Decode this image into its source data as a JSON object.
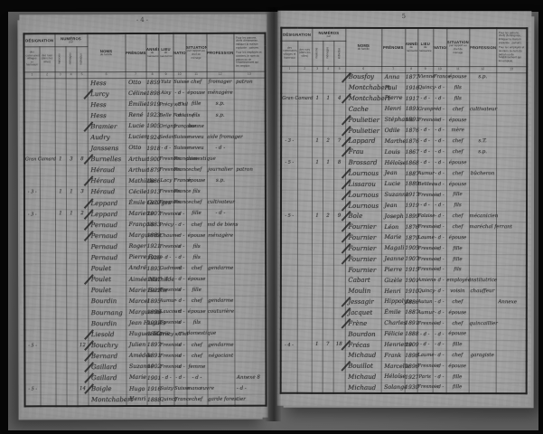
{
  "columns": {
    "designation": {
      "title": "DÉSIGNATION",
      "subs": [
        "des communes, villages et hameaux",
        "des rues (dans les villes)"
      ]
    },
    "numeros": {
      "title": "NUMÉROS",
      "note": "par",
      "subs": [
        "maisons",
        "ménages",
        "individus"
      ]
    },
    "noms": {
      "title": "NOMS",
      "sub": "de famille"
    },
    "prenoms": {
      "title": "PRÉNOMS",
      "sub": ""
    },
    "annee": {
      "title": "ANNÉE",
      "sub": "de naissance"
    },
    "lieu": {
      "title": "LIEU",
      "sub": "de naissance"
    },
    "nationalite": {
      "title": "NATIONALITÉ",
      "sub": ""
    },
    "situation": {
      "title": "SITUATION",
      "sub": "par rapport au chef de ménage"
    },
    "profession": {
      "title": "PROFESSION",
      "sub": ""
    },
    "observations": {
      "note1": "Pour les patrons, chefs d'entreprise, indiquer la maison exploitée ; patrons.",
      "note2": "Pour les employés et ouvriers, le nom du patron ou de l'établissement qui les emploie."
    },
    "col_digits": [
      "1",
      "2",
      "3",
      "4",
      "5",
      "6",
      "7",
      "8",
      "9",
      "10",
      "11",
      "12",
      "13"
    ]
  },
  "pages": [
    {
      "no": "-4-",
      "rows": [
        [
          "",
          "",
          "",
          "",
          "",
          "Hess",
          "Otto",
          "1859",
          "Yutz",
          "Suisse",
          "chef",
          "fromager",
          "patron",
          0
        ],
        [
          "",
          "",
          "",
          "",
          "",
          "Lurcy",
          "Céline",
          "1898",
          "Aisy",
          "- d -",
          "épouse",
          "ménagère",
          "",
          1
        ],
        [
          "",
          "",
          "",
          "",
          "",
          "Hess",
          "Émilie",
          "1919",
          "Précy s/Thil",
          "- d -",
          "fille",
          "s.p.",
          "",
          0
        ],
        [
          "",
          "",
          "",
          "",
          "",
          "Hess",
          "René",
          "1923",
          "Belle Fontaine",
          "- d -",
          "fils",
          "s.p.",
          "",
          0
        ],
        [
          "",
          "",
          "",
          "",
          "",
          "Bramier",
          "Lucie",
          "1905",
          "Origny",
          "française",
          "bonne",
          "",
          "",
          1
        ],
        [
          "",
          "",
          "",
          "",
          "",
          "Audry",
          "Lucien",
          "1924",
          "Sedan",
          "Suisse",
          "neveu",
          "aide fromager",
          "",
          0
        ],
        [
          "",
          "",
          "",
          "",
          "",
          "Janssens",
          "Otto",
          "1918",
          "- d -",
          "Suisse",
          "neveu",
          "- d -",
          "",
          0
        ],
        [
          "Gran Camard",
          "",
          "1",
          "3",
          "8",
          "Burnelles",
          "Arthur",
          "1900",
          "Fresnois",
          "Française",
          "domestique",
          "",
          "",
          1
        ],
        [
          "",
          "",
          "",
          "",
          "",
          "Héraud",
          "Arthur",
          "1879",
          "Fresnois",
          "France",
          "chef",
          "journalier",
          "patron",
          0
        ],
        [
          "",
          "",
          "",
          "",
          "",
          "Héraud",
          "Mathilde",
          "1886",
          "Lacy",
          "France",
          "épouse",
          "s.p.",
          "",
          1
        ],
        [
          "- 3 -",
          "",
          "1",
          "1",
          "3",
          "Héraud",
          "Cécile",
          "1913",
          "Fresnois",
          "France",
          "fils",
          "",
          "",
          0
        ],
        [
          "",
          "",
          "",
          "",
          "",
          "Leppard",
          "Émile Georges",
          "1877",
          "Fresnois",
          "France",
          "chef",
          "cultivateur",
          "",
          1
        ],
        [
          "- 3 -",
          "",
          "1",
          "1",
          "2",
          "Leppard",
          "Mariette",
          "1907",
          "Fresnois",
          "- d -",
          "fille",
          "- d -",
          "",
          1
        ],
        [
          "",
          "",
          "",
          "",
          "",
          "Pernaud",
          "François",
          "1883",
          "Précy",
          "- d -",
          "chef",
          "md de biens",
          "",
          1
        ],
        [
          "",
          "",
          "",
          "",
          "",
          "Pernaud",
          "Marguerite",
          "1889",
          "Chaume",
          "- d -",
          "épouse",
          "ménagère",
          "",
          1
        ],
        [
          "",
          "",
          "",
          "",
          "",
          "Pernaud",
          "Roger",
          "1921",
          "Fresnois",
          "- d -",
          "fils",
          "",
          "",
          0
        ],
        [
          "",
          "",
          "",
          "",
          "",
          "Pernaud",
          "Pierre Rose",
          "1919",
          "- d -",
          "- d -",
          "fils",
          "",
          "",
          0
        ],
        [
          "",
          "",
          "",
          "",
          "",
          "Poulet",
          "André",
          "1893",
          "Gudmont",
          "- d -",
          "chef",
          "gendarme",
          "",
          0
        ],
        [
          "",
          "",
          "",
          "",
          "",
          "Poulet",
          "Aimée Mathilde",
          "1897",
          "- d -",
          "- d -",
          "épouse",
          "",
          "",
          1
        ],
        [
          "",
          "",
          "",
          "",
          "",
          "Poulet",
          "Marie Berthe",
          "1922",
          "Fresnois",
          "- d -",
          "fille",
          "",
          "",
          0
        ],
        [
          "",
          "",
          "",
          "",
          "",
          "Bourdin",
          "Marcel",
          "1895",
          "Aumur",
          "- d -",
          "chef",
          "gendarme",
          "",
          0
        ],
        [
          "",
          "",
          "",
          "",
          "",
          "Bournang",
          "Marguerite",
          "1896",
          "Laucourt",
          "- d -",
          "épouse",
          "couturière",
          "",
          0
        ],
        [
          "",
          "",
          "",
          "",
          "",
          "Bourdin",
          "Jean Hugues",
          "1927",
          "Fresnois",
          "- d -",
          "fils",
          "",
          "",
          0
        ],
        [
          "",
          "",
          "",
          "",
          "",
          "Liesold",
          "Hugues Marie",
          "1882",
          "Précy s/Thil",
          "- d -",
          "domestique",
          "",
          "",
          1
        ],
        [
          "- 5 -",
          "",
          "",
          "",
          "12",
          "Bouchry",
          "Julien",
          "1897",
          "Fresnois",
          "- d -",
          "chef",
          "gendarme",
          "",
          1
        ],
        [
          "",
          "",
          "",
          "",
          "",
          "Bernard",
          "Amédée",
          "1891",
          "Fresnois",
          "- d -",
          "chef",
          "négociant",
          "",
          1
        ],
        [
          "",
          "",
          "",
          "",
          "",
          "Gaillard",
          "Suzanne",
          "1902",
          "Fresnois",
          "- d -",
          "femme",
          "",
          "",
          1
        ],
        [
          "",
          "",
          "",
          "",
          "",
          "Gaillard",
          "Marie",
          "1901",
          "- d -",
          "- d -",
          "- d -",
          "",
          "Annexe 8",
          1
        ],
        [
          "- 5 -",
          "",
          "",
          "",
          "14",
          "Boigle",
          "Hugo",
          "1916",
          "Suizy",
          "Suisse",
          "manœuvre",
          "",
          "- d -",
          1
        ],
        [
          "",
          "",
          "",
          "",
          "",
          "Montchabert",
          "Henri",
          "1888",
          "Quincy",
          "France",
          "chef",
          "garde forestier",
          "",
          0
        ]
      ]
    },
    {
      "no": "5",
      "rows": [
        [
          "",
          "",
          "",
          "",
          "",
          "Bousfoy",
          "Anna",
          "1877",
          "Vienne",
          "France",
          "épouse",
          "s.p.",
          "",
          1
        ],
        [
          "",
          "",
          "",
          "",
          "",
          "Montchabert",
          "Paul",
          "1916",
          "Quincy",
          "- d -",
          "fils",
          "",
          "",
          0
        ],
        [
          "Gran Camard",
          "",
          "1",
          "1",
          "4",
          "Montchabert",
          "Pierre",
          "1917",
          "- d -",
          "- d -",
          "fils",
          "",
          "",
          1
        ],
        [
          "",
          "",
          "",
          "",
          "",
          "Cache",
          "Henri",
          "1891",
          "Granpré",
          "- d -",
          "chef",
          "cultivateur",
          "",
          0
        ],
        [
          "",
          "",
          "",
          "",
          "",
          "Poulietier",
          "Stéphanie",
          "1891",
          "Fresnois",
          "- d -",
          "épouse",
          "",
          "",
          1
        ],
        [
          "",
          "",
          "",
          "",
          "",
          "Poulietier",
          "Odile",
          "1876",
          "- d -",
          "- d -",
          "mère",
          "",
          "",
          1
        ],
        [
          "- 3 -",
          "",
          "1",
          "2",
          "7",
          "Lappard",
          "Marthe",
          "1876",
          "- d -",
          "- d -",
          "chef",
          "s.T.",
          "",
          1
        ],
        [
          "",
          "",
          "",
          "",
          "",
          "Frau",
          "Louis",
          "1867",
          "- d -",
          "- d -",
          "chef",
          "s.p.",
          "",
          1
        ],
        [
          "- 5 -",
          "",
          "1",
          "1",
          "8",
          "Brossard",
          "Héloïse",
          "1868",
          "- d -",
          "- d -",
          "épouse",
          "",
          "",
          0
        ],
        [
          "",
          "",
          "",
          "",
          "",
          "Lournous",
          "Jean",
          "1887",
          "Aumur",
          "- d -",
          "chef",
          "bûcheron",
          "",
          1
        ],
        [
          "",
          "",
          "",
          "",
          "",
          "Lissarou",
          "Lucie",
          "1889",
          "Belileau",
          "- d -",
          "épouse",
          "",
          "",
          1
        ],
        [
          "",
          "",
          "",
          "",
          "",
          "Lournous",
          "Suzanne",
          "1917",
          "Fresnois",
          "- d -",
          "fille",
          "",
          "",
          1
        ],
        [
          "",
          "",
          "",
          "",
          "",
          "Lournous",
          "Jean",
          "1919",
          "- d -",
          "- d -",
          "fils",
          "",
          "",
          1
        ],
        [
          "- 5 -",
          "",
          "1",
          "2",
          "9",
          "Bole",
          "Joseph",
          "1899",
          "Falaise",
          "- d -",
          "chef",
          "mécanicien",
          "",
          1
        ],
        [
          "",
          "",
          "",
          "",
          "",
          "Fournier",
          "Léon",
          "1876",
          "Fresnois",
          "- d -",
          "chef",
          "maréchal ferrant",
          "",
          1
        ],
        [
          "",
          "",
          "",
          "",
          "",
          "Fournier",
          "Marie",
          "1879",
          "Laume",
          "- d -",
          "épouse",
          "",
          "",
          1
        ],
        [
          "",
          "",
          "",
          "",
          "",
          "Fournier",
          "Magali",
          "1905",
          "Fresnois",
          "- d -",
          "fille",
          "",
          "",
          1
        ],
        [
          "",
          "",
          "",
          "",
          "",
          "Fournier",
          "Jeanne",
          "1907",
          "Fresnois",
          "- d -",
          "fille",
          "",
          "",
          1
        ],
        [
          "",
          "",
          "",
          "",
          "",
          "Fournier",
          "Pierre",
          "1915",
          "Fresnois",
          "- d -",
          "fils",
          "",
          "",
          0
        ],
        [
          "",
          "",
          "",
          "",
          "",
          "Cabart",
          "Gizèle",
          "1901",
          "Amiens",
          "- d -",
          "employée",
          "institutrice",
          "",
          0
        ],
        [
          "",
          "",
          "",
          "",
          "",
          "Moulin",
          "Henri",
          "1910",
          "Quincy",
          "- d -",
          "voisin",
          "chauffeur",
          "",
          0
        ],
        [
          "",
          "",
          "",
          "",
          "",
          "Jessagir",
          "Hippolyte",
          "1886",
          "Autun",
          "- d -",
          "chef",
          "",
          "Annexe",
          1
        ],
        [
          "",
          "",
          "",
          "",
          "",
          "Jacquet",
          "Émile",
          "1887",
          "Aumur",
          "- d -",
          "épouse",
          "",
          "",
          1
        ],
        [
          "",
          "",
          "",
          "",
          "",
          "Frène",
          "Charles",
          "1891",
          "Fresnois",
          "- d -",
          "chef",
          "quincaillier",
          "",
          1
        ],
        [
          "",
          "",
          "",
          "",
          "",
          "Bourdon",
          "Félicie",
          "1888",
          "- d -",
          "- d -",
          "épouse",
          "",
          "",
          0
        ],
        [
          "- 4 -",
          "",
          "1",
          "7",
          "18",
          "Frécas",
          "Henriette",
          "1909",
          "- d -",
          "- d -",
          "fille",
          "",
          "",
          1
        ],
        [
          "",
          "",
          "",
          "",
          "",
          "Michaud",
          "Frank",
          "1898",
          "Laume",
          "- d -",
          "chef",
          "garagiste",
          "",
          0
        ],
        [
          "",
          "",
          "",
          "",
          "",
          "Bouillot",
          "Marcelle",
          "1896",
          "Fresnois",
          "- d -",
          "épouse",
          "",
          "",
          1
        ],
        [
          "",
          "",
          "",
          "",
          "",
          "Michaud",
          "Héloïse",
          "1927",
          "Paris",
          "- d -",
          "fille",
          "",
          "",
          0
        ],
        [
          "",
          "",
          "",
          "",
          "",
          "Michaud",
          "Solange",
          "1930",
          "Fresnois",
          "- d -",
          "fille",
          "",
          "",
          0
        ]
      ]
    }
  ]
}
